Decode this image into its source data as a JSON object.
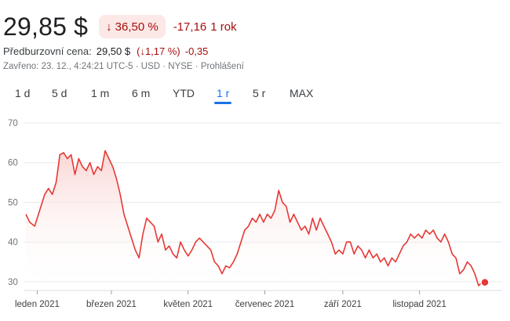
{
  "quote": {
    "price": "29,85 $",
    "change_pct": "36,50 %",
    "change_arrow": "↓",
    "change_abs": "-17,16",
    "period": "1 rok",
    "premarket_label": "Předburzovní cena:",
    "premarket_value": "29,50 $",
    "premarket_pct": "(↓1,17 %)",
    "premarket_abs": "-0,35",
    "closed_info": "Zavřeno: 23. 12., 4:24:21 UTC-5 · USD · NYSE · Prohlášení"
  },
  "tabs": [
    {
      "label": "1 d",
      "active": false
    },
    {
      "label": "5 d",
      "active": false
    },
    {
      "label": "1 m",
      "active": false
    },
    {
      "label": "6 m",
      "active": false
    },
    {
      "label": "YTD",
      "active": false
    },
    {
      "label": "1 r",
      "active": true
    },
    {
      "label": "5 r",
      "active": false
    },
    {
      "label": "MAX",
      "active": false
    }
  ],
  "colors": {
    "line": "#e53935",
    "fill_top": "#f9cfcc",
    "badge_bg": "#fce8e6",
    "negative": "#a50e0e",
    "active_tab": "#1a73e8",
    "grid": "#e8eaed"
  },
  "chart_data": {
    "type": "area",
    "title": "",
    "xlabel": "",
    "ylabel": "",
    "ylim": [
      28,
      70
    ],
    "yticks": [
      30,
      40,
      50,
      60,
      70
    ],
    "xtick_labels": [
      {
        "label": "leden 2021",
        "x": "2021-01-01"
      },
      {
        "label": "březen 2021",
        "x": "2021-03-01"
      },
      {
        "label": "květen 2021",
        "x": "2021-05-01"
      },
      {
        "label": "červenec 2021",
        "x": "2021-07-01"
      },
      {
        "label": "září 2021",
        "x": "2021-09-01"
      },
      {
        "label": "listopad 2021",
        "x": "2021-11-01"
      }
    ],
    "grid": true,
    "series": [
      {
        "points": [
          [
            "2020-12-23",
            47
          ],
          [
            "2020-12-26",
            45
          ],
          [
            "2020-12-30",
            44
          ],
          [
            "2021-01-03",
            48
          ],
          [
            "2021-01-07",
            52
          ],
          [
            "2021-01-10",
            53.5
          ],
          [
            "2021-01-13",
            52
          ],
          [
            "2021-01-16",
            55
          ],
          [
            "2021-01-19",
            62
          ],
          [
            "2021-01-22",
            62.5
          ],
          [
            "2021-01-25",
            61
          ],
          [
            "2021-01-28",
            62
          ],
          [
            "2021-01-31",
            57
          ],
          [
            "2021-02-03",
            61
          ],
          [
            "2021-02-06",
            59
          ],
          [
            "2021-02-09",
            58
          ],
          [
            "2021-02-12",
            60
          ],
          [
            "2021-02-15",
            57
          ],
          [
            "2021-02-18",
            59
          ],
          [
            "2021-02-21",
            58
          ],
          [
            "2021-02-24",
            63
          ],
          [
            "2021-02-27",
            61
          ],
          [
            "2021-03-02",
            59
          ],
          [
            "2021-03-05",
            56
          ],
          [
            "2021-03-08",
            52
          ],
          [
            "2021-03-11",
            47
          ],
          [
            "2021-03-14",
            44
          ],
          [
            "2021-03-17",
            41
          ],
          [
            "2021-03-20",
            38
          ],
          [
            "2021-03-23",
            36
          ],
          [
            "2021-03-26",
            42
          ],
          [
            "2021-03-29",
            46
          ],
          [
            "2021-04-01",
            45
          ],
          [
            "2021-04-04",
            44
          ],
          [
            "2021-04-07",
            40
          ],
          [
            "2021-04-10",
            42
          ],
          [
            "2021-04-13",
            38
          ],
          [
            "2021-04-16",
            39
          ],
          [
            "2021-04-19",
            37
          ],
          [
            "2021-04-22",
            36
          ],
          [
            "2021-04-25",
            40
          ],
          [
            "2021-04-28",
            38
          ],
          [
            "2021-05-01",
            36.5
          ],
          [
            "2021-05-04",
            38
          ],
          [
            "2021-05-07",
            40
          ],
          [
            "2021-05-10",
            41
          ],
          [
            "2021-05-13",
            40
          ],
          [
            "2021-05-16",
            39
          ],
          [
            "2021-05-19",
            38
          ],
          [
            "2021-05-22",
            35
          ],
          [
            "2021-05-25",
            34
          ],
          [
            "2021-05-28",
            32
          ],
          [
            "2021-05-31",
            34
          ],
          [
            "2021-06-03",
            33.5
          ],
          [
            "2021-06-06",
            35
          ],
          [
            "2021-06-09",
            37
          ],
          [
            "2021-06-12",
            40
          ],
          [
            "2021-06-15",
            43
          ],
          [
            "2021-06-18",
            44
          ],
          [
            "2021-06-21",
            46
          ],
          [
            "2021-06-24",
            45
          ],
          [
            "2021-06-27",
            47
          ],
          [
            "2021-06-30",
            45
          ],
          [
            "2021-07-03",
            47
          ],
          [
            "2021-07-06",
            46
          ],
          [
            "2021-07-09",
            48
          ],
          [
            "2021-07-12",
            53
          ],
          [
            "2021-07-15",
            50
          ],
          [
            "2021-07-18",
            49
          ],
          [
            "2021-07-21",
            45
          ],
          [
            "2021-07-24",
            47
          ],
          [
            "2021-07-27",
            45
          ],
          [
            "2021-07-30",
            43
          ],
          [
            "2021-08-02",
            44
          ],
          [
            "2021-08-05",
            42
          ],
          [
            "2021-08-08",
            46
          ],
          [
            "2021-08-11",
            43
          ],
          [
            "2021-08-14",
            46
          ],
          [
            "2021-08-17",
            44
          ],
          [
            "2021-08-20",
            42
          ],
          [
            "2021-08-23",
            40
          ],
          [
            "2021-08-26",
            37
          ],
          [
            "2021-08-29",
            38
          ],
          [
            "2021-09-01",
            37
          ],
          [
            "2021-09-04",
            40
          ],
          [
            "2021-09-07",
            40
          ],
          [
            "2021-09-10",
            37
          ],
          [
            "2021-09-13",
            39
          ],
          [
            "2021-09-16",
            38
          ],
          [
            "2021-09-19",
            36
          ],
          [
            "2021-09-22",
            38
          ],
          [
            "2021-09-25",
            36
          ],
          [
            "2021-09-28",
            37
          ],
          [
            "2021-10-01",
            35
          ],
          [
            "2021-10-04",
            36
          ],
          [
            "2021-10-07",
            34
          ],
          [
            "2021-10-10",
            36
          ],
          [
            "2021-10-13",
            35
          ],
          [
            "2021-10-16",
            37
          ],
          [
            "2021-10-19",
            39
          ],
          [
            "2021-10-22",
            40
          ],
          [
            "2021-10-25",
            42
          ],
          [
            "2021-10-28",
            41
          ],
          [
            "2021-10-31",
            42
          ],
          [
            "2021-11-03",
            41
          ],
          [
            "2021-11-06",
            43
          ],
          [
            "2021-11-09",
            42
          ],
          [
            "2021-11-12",
            43
          ],
          [
            "2021-11-15",
            41
          ],
          [
            "2021-11-18",
            40
          ],
          [
            "2021-11-21",
            42
          ],
          [
            "2021-11-24",
            40
          ],
          [
            "2021-11-27",
            37
          ],
          [
            "2021-11-30",
            36
          ],
          [
            "2021-12-03",
            32
          ],
          [
            "2021-12-06",
            33
          ],
          [
            "2021-12-09",
            35
          ],
          [
            "2021-12-12",
            34
          ],
          [
            "2021-12-15",
            32
          ],
          [
            "2021-12-18",
            29
          ],
          [
            "2021-12-21",
            30
          ],
          [
            "2021-12-23",
            29.85
          ]
        ]
      }
    ]
  }
}
